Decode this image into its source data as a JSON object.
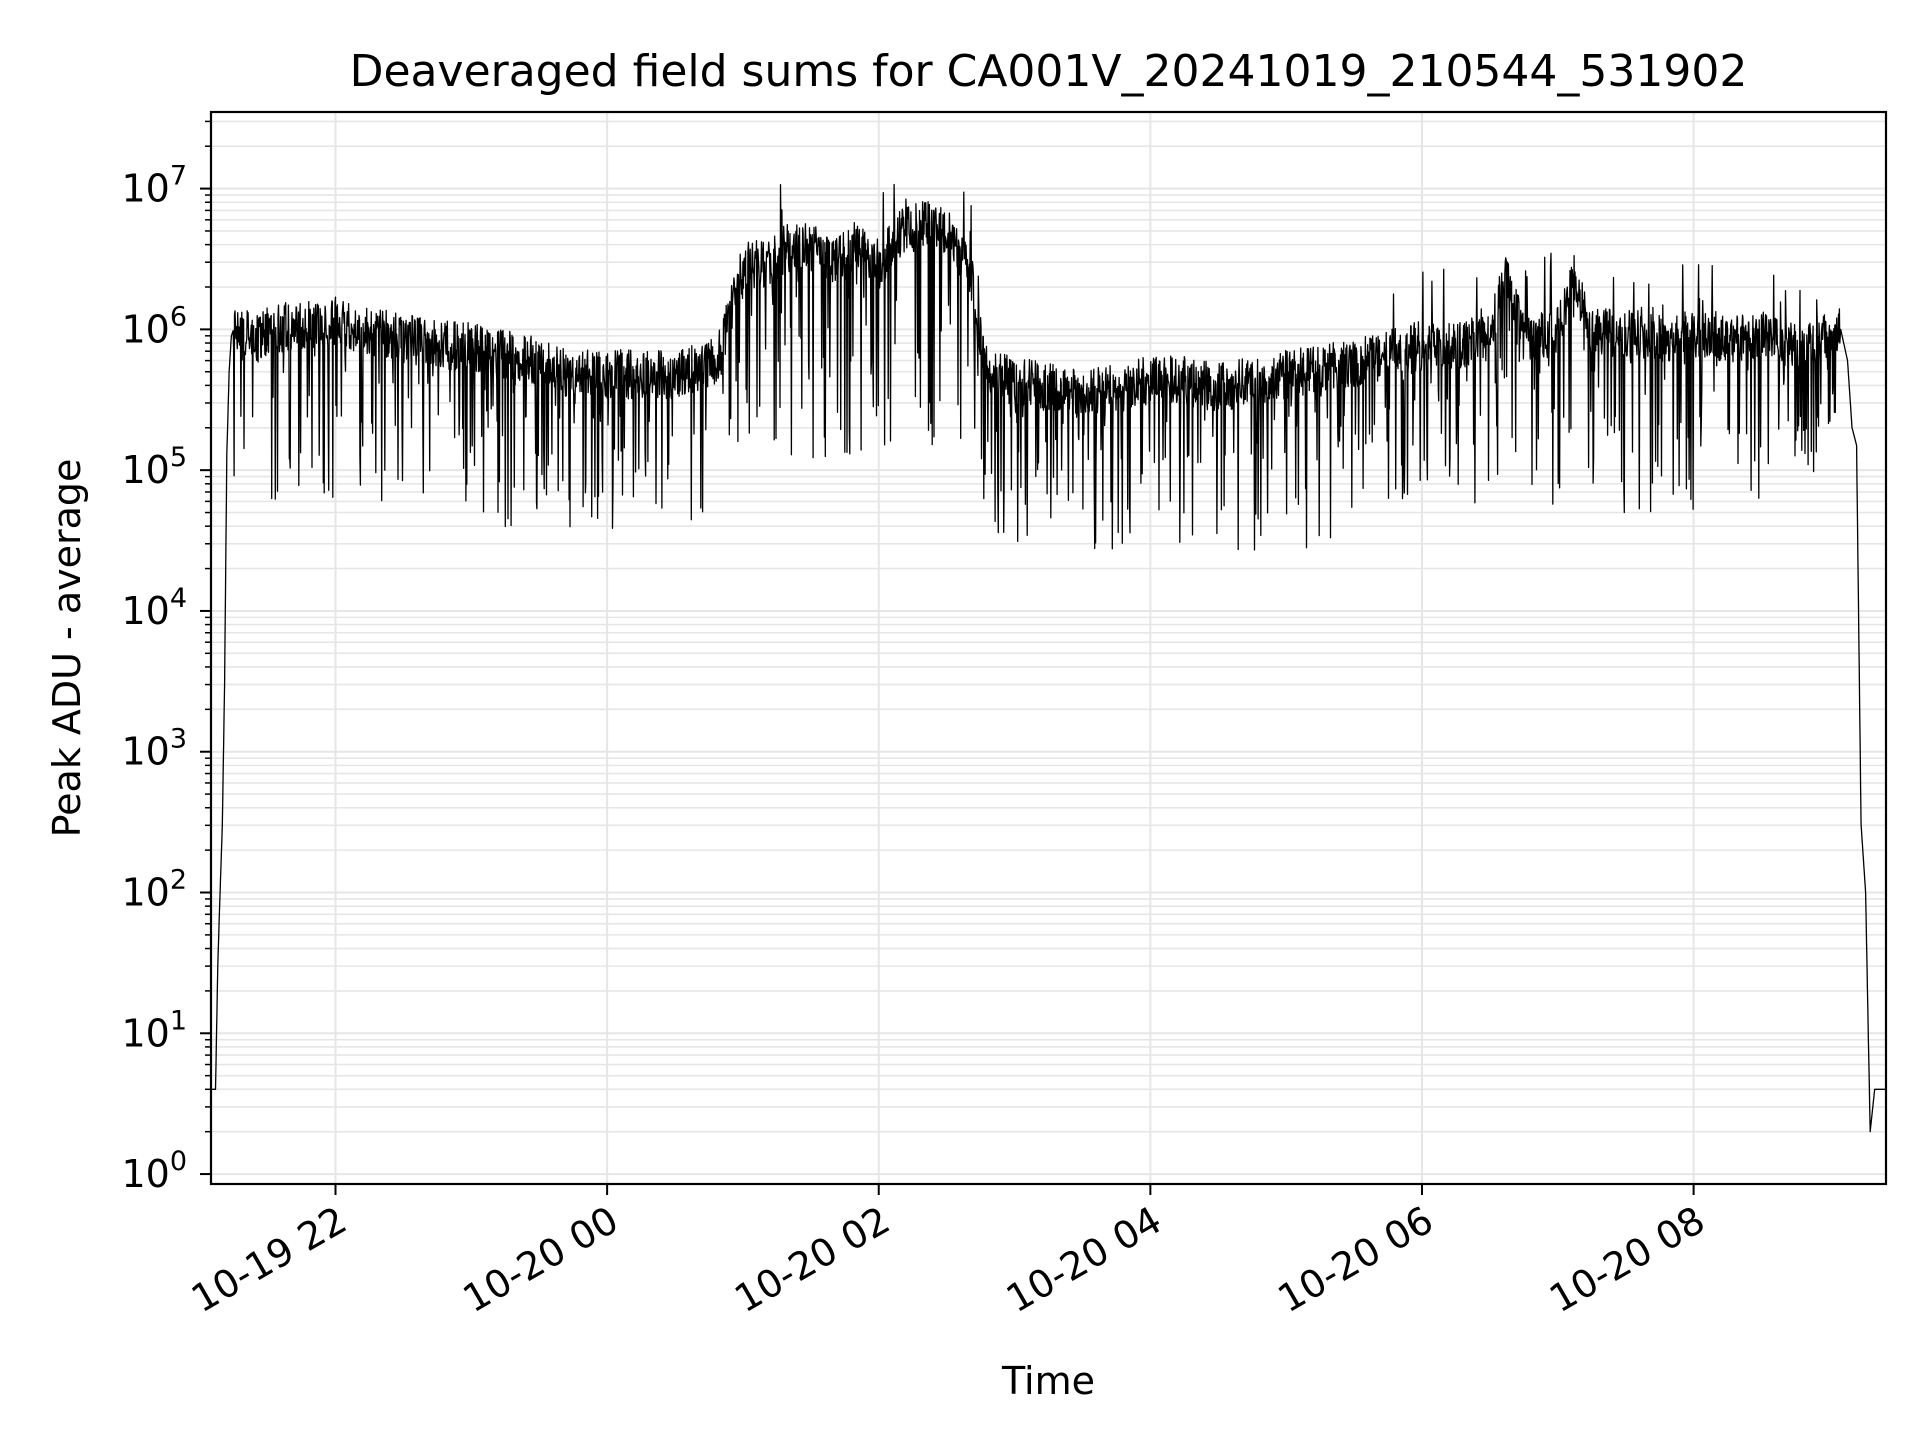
{
  "chart_data": {
    "type": "line",
    "title": "Deaveraged field sums for CA001V_20241019_210544_531902",
    "xlabel": "Time",
    "ylabel": "Peak ADU - average",
    "yscale": "log",
    "ylim": [
      0.85,
      35000000
    ],
    "xlim": [
      "2024-10-19 21:05",
      "2024-10-20 09:25"
    ],
    "x_ticks": [
      {
        "value": "2024-10-19 22:00",
        "label": "10-19 22"
      },
      {
        "value": "2024-10-20 00:00",
        "label": "10-20 00"
      },
      {
        "value": "2024-10-20 02:00",
        "label": "10-20 02"
      },
      {
        "value": "2024-10-20 04:00",
        "label": "10-20 04"
      },
      {
        "value": "2024-10-20 06:00",
        "label": "10-20 06"
      },
      {
        "value": "2024-10-20 08:00",
        "label": "10-20 08"
      }
    ],
    "y_ticks": [
      {
        "exp": 0,
        "base": "10",
        "sup": "0"
      },
      {
        "exp": 1,
        "base": "10",
        "sup": "1"
      },
      {
        "exp": 2,
        "base": "10",
        "sup": "2"
      },
      {
        "exp": 3,
        "base": "10",
        "sup": "3"
      },
      {
        "exp": 4,
        "base": "10",
        "sup": "4"
      },
      {
        "exp": 5,
        "base": "10",
        "sup": "5"
      },
      {
        "exp": 6,
        "base": "10",
        "sup": "6"
      },
      {
        "exp": 7,
        "base": "10",
        "sup": "7"
      }
    ],
    "grid": true,
    "grid_minor": true,
    "line_color": "#000000",
    "grid_color": "#e6e6e6",
    "series": [
      {
        "x": [
          "2024-10-19 21:05",
          "2024-10-19 21:06",
          "2024-10-19 21:07",
          "2024-10-19 21:08",
          "2024-10-19 21:09",
          "2024-10-19 21:10",
          "2024-10-19 21:11",
          "2024-10-19 21:12",
          "2024-10-19 21:13",
          "2024-10-19 21:14",
          "2024-10-19 21:15",
          "2024-10-19 21:16",
          "2024-10-19 21:18",
          "2024-10-19 21:20",
          "2024-10-19 21:22",
          "2024-10-19 21:25",
          "2024-10-19 21:30",
          "2024-10-19 21:40",
          "2024-10-19 21:50",
          "2024-10-19 22:00",
          "2024-10-19 22:15",
          "2024-10-19 22:30",
          "2024-10-19 22:45",
          "2024-10-19 23:00",
          "2024-10-19 23:15",
          "2024-10-19 23:30",
          "2024-10-19 23:45",
          "2024-10-20 00:00",
          "2024-10-20 00:15",
          "2024-10-20 00:30",
          "2024-10-20 00:45",
          "2024-10-20 00:50",
          "2024-10-20 00:55",
          "2024-10-20 01:00",
          "2024-10-20 01:10",
          "2024-10-20 01:20",
          "2024-10-20 01:30",
          "2024-10-20 01:40",
          "2024-10-20 01:50",
          "2024-10-20 02:00",
          "2024-10-20 02:10",
          "2024-10-20 02:20",
          "2024-10-20 02:30",
          "2024-10-20 02:40",
          "2024-10-20 02:45",
          "2024-10-20 02:50",
          "2024-10-20 03:00",
          "2024-10-20 03:15",
          "2024-10-20 03:30",
          "2024-10-20 03:45",
          "2024-10-20 04:00",
          "2024-10-20 04:15",
          "2024-10-20 04:30",
          "2024-10-20 04:45",
          "2024-10-20 05:00",
          "2024-10-20 05:15",
          "2024-10-20 05:30",
          "2024-10-20 05:45",
          "2024-10-20 06:00",
          "2024-10-20 06:15",
          "2024-10-20 06:30",
          "2024-10-20 06:37",
          "2024-10-20 06:45",
          "2024-10-20 07:00",
          "2024-10-20 07:07",
          "2024-10-20 07:15",
          "2024-10-20 07:30",
          "2024-10-20 07:45",
          "2024-10-20 08:00",
          "2024-10-20 08:15",
          "2024-10-20 08:30",
          "2024-10-20 08:45",
          "2024-10-20 09:00",
          "2024-10-20 09:05",
          "2024-10-20 09:08",
          "2024-10-20 09:10",
          "2024-10-20 09:12",
          "2024-10-20 09:14",
          "2024-10-20 09:16",
          "2024-10-20 09:18",
          "2024-10-20 09:20",
          "2024-10-20 09:25"
        ],
        "values": [
          4,
          4,
          4,
          30,
          100,
          300,
          3000,
          130000,
          500000,
          900000,
          1000000,
          1100000,
          900000,
          1000000,
          1000000,
          900000,
          1000000,
          1100000,
          1100000,
          1200000,
          1000000,
          900000,
          800000,
          800000,
          700000,
          600000,
          500000,
          500000,
          500000,
          500000,
          600000,
          700000,
          1500000,
          3000000,
          3000000,
          4000000,
          4000000,
          3000000,
          4000000,
          3000000,
          5000000,
          6000000,
          5000000,
          3000000,
          900000,
          500000,
          450000,
          400000,
          350000,
          400000,
          450000,
          450000,
          400000,
          450000,
          500000,
          550000,
          600000,
          700000,
          800000,
          800000,
          900000,
          3000000,
          900000,
          1000000,
          2500000,
          1000000,
          1000000,
          900000,
          1000000,
          900000,
          900000,
          800000,
          900000,
          1000000,
          600000,
          200000,
          150000,
          300,
          100,
          2,
          4,
          4
        ],
        "noise_profile": [
          {
            "from": "2024-10-19 21:15",
            "to": "2024-10-19 23:00",
            "min": 60000
          },
          {
            "from": "2024-10-19 23:00",
            "to": "2024-10-20 00:55",
            "min": 37000
          },
          {
            "from": "2024-10-20 00:55",
            "to": "2024-10-20 02:45",
            "min": 120000,
            "max": 17000000
          },
          {
            "from": "2024-10-20 02:45",
            "to": "2024-10-20 05:30",
            "min": 25000
          },
          {
            "from": "2024-10-20 05:30",
            "to": "2024-10-20 09:05",
            "min": 50000,
            "max": 6000000
          }
        ]
      }
    ]
  }
}
